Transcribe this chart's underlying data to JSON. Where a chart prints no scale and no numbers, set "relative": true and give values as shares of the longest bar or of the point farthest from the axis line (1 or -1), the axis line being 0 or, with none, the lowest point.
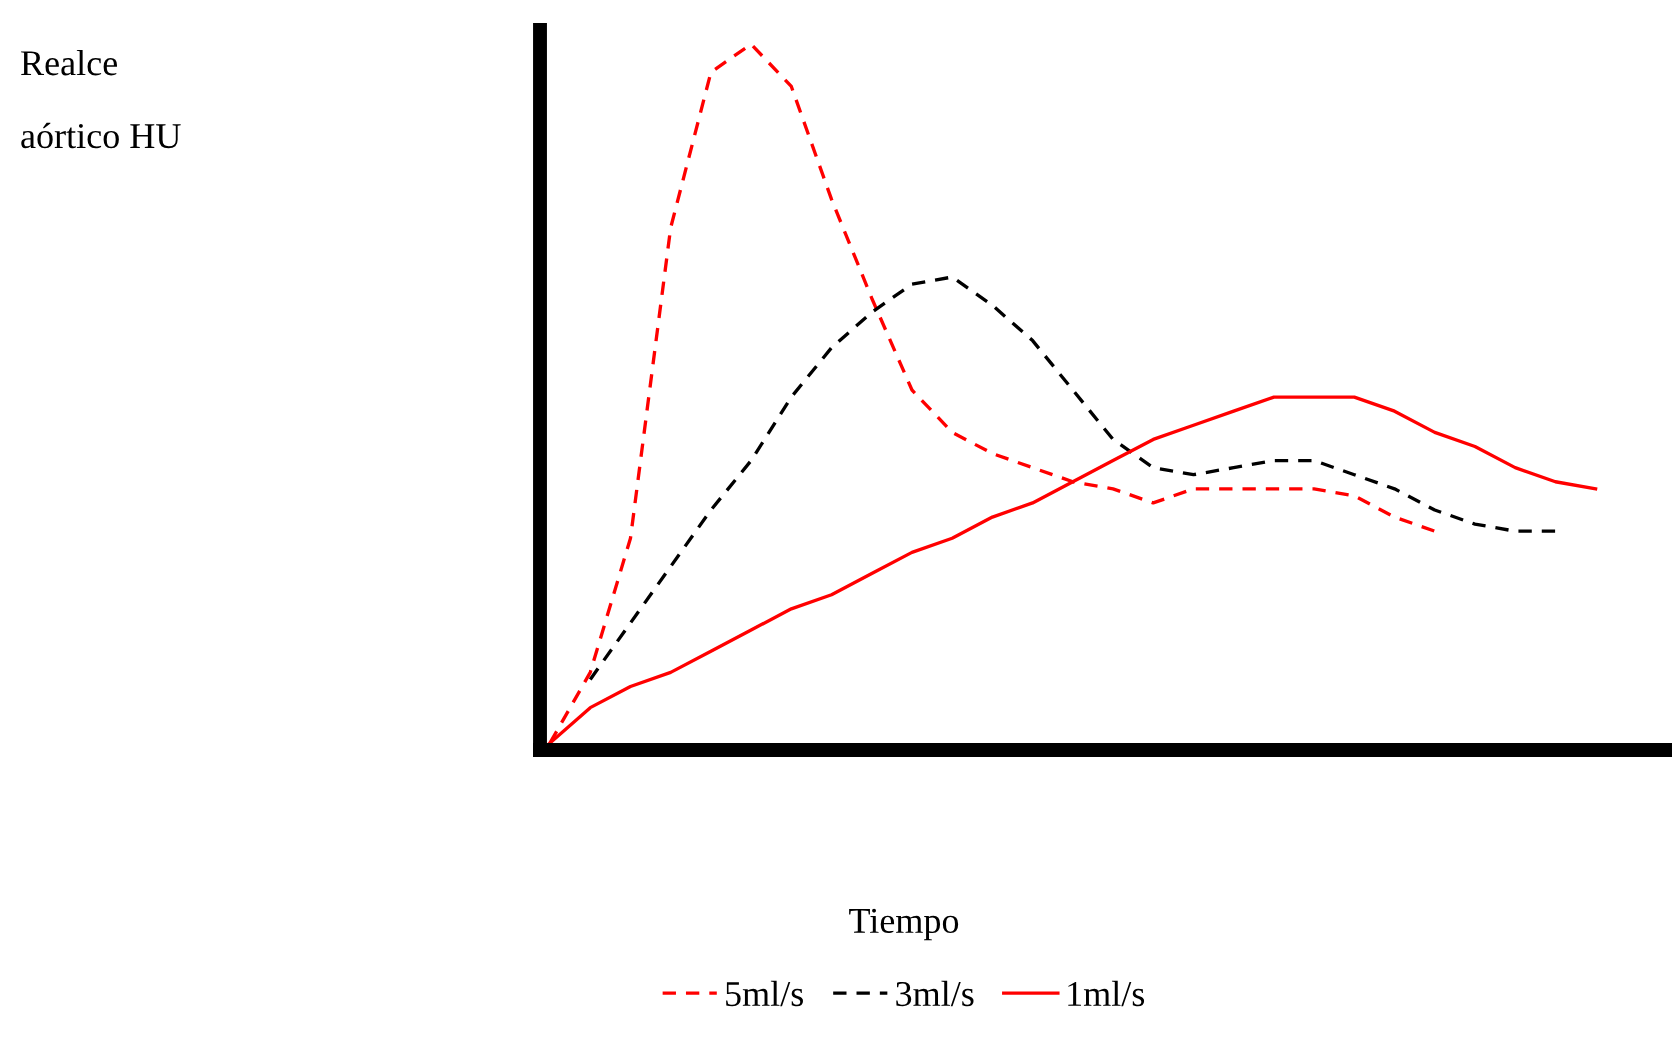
{
  "chart_data": {
    "type": "line",
    "relative": true,
    "xlabel": "Tiempo",
    "ylabel": "Realce\naórtico HU",
    "categories": [
      null,
      null,
      null,
      null,
      null,
      null,
      null,
      null,
      null,
      null,
      null,
      null,
      null,
      null,
      null,
      null,
      null,
      null,
      null,
      null,
      null,
      null,
      null,
      null,
      null,
      null,
      null
    ],
    "series": [
      {
        "name": "5ml/s",
        "color": "#ff0000",
        "line_style": "dashed",
        "values": [
          0.01,
          0.11,
          0.3,
          0.74,
          0.96,
          1.0,
          0.94,
          0.78,
          0.64,
          0.51,
          0.45,
          0.42,
          0.4,
          0.38,
          0.37,
          0.35,
          0.37,
          0.37,
          0.37,
          0.37,
          0.36,
          0.33,
          0.31,
          null,
          null,
          null,
          null
        ]
      },
      {
        "name": "3ml/s",
        "color": "#000000",
        "line_style": "dashed",
        "values": [
          null,
          0.1,
          0.18,
          0.26,
          0.34,
          0.41,
          0.5,
          0.57,
          0.62,
          0.66,
          0.67,
          0.63,
          0.58,
          0.51,
          0.44,
          0.4,
          0.39,
          0.4,
          0.41,
          0.41,
          0.39,
          0.37,
          0.34,
          0.32,
          0.31,
          0.31,
          null
        ]
      },
      {
        "name": "1ml/s",
        "color": "#ff0000",
        "line_style": "solid",
        "values": [
          0.01,
          0.06,
          0.09,
          0.11,
          0.14,
          0.17,
          0.2,
          0.22,
          0.25,
          0.28,
          0.3,
          0.33,
          0.35,
          0.38,
          0.41,
          0.44,
          0.46,
          0.48,
          0.5,
          0.5,
          0.5,
          0.48,
          0.45,
          0.43,
          0.4,
          0.38,
          0.37
        ]
      }
    ],
    "legend": "bottom",
    "grid": false
  }
}
